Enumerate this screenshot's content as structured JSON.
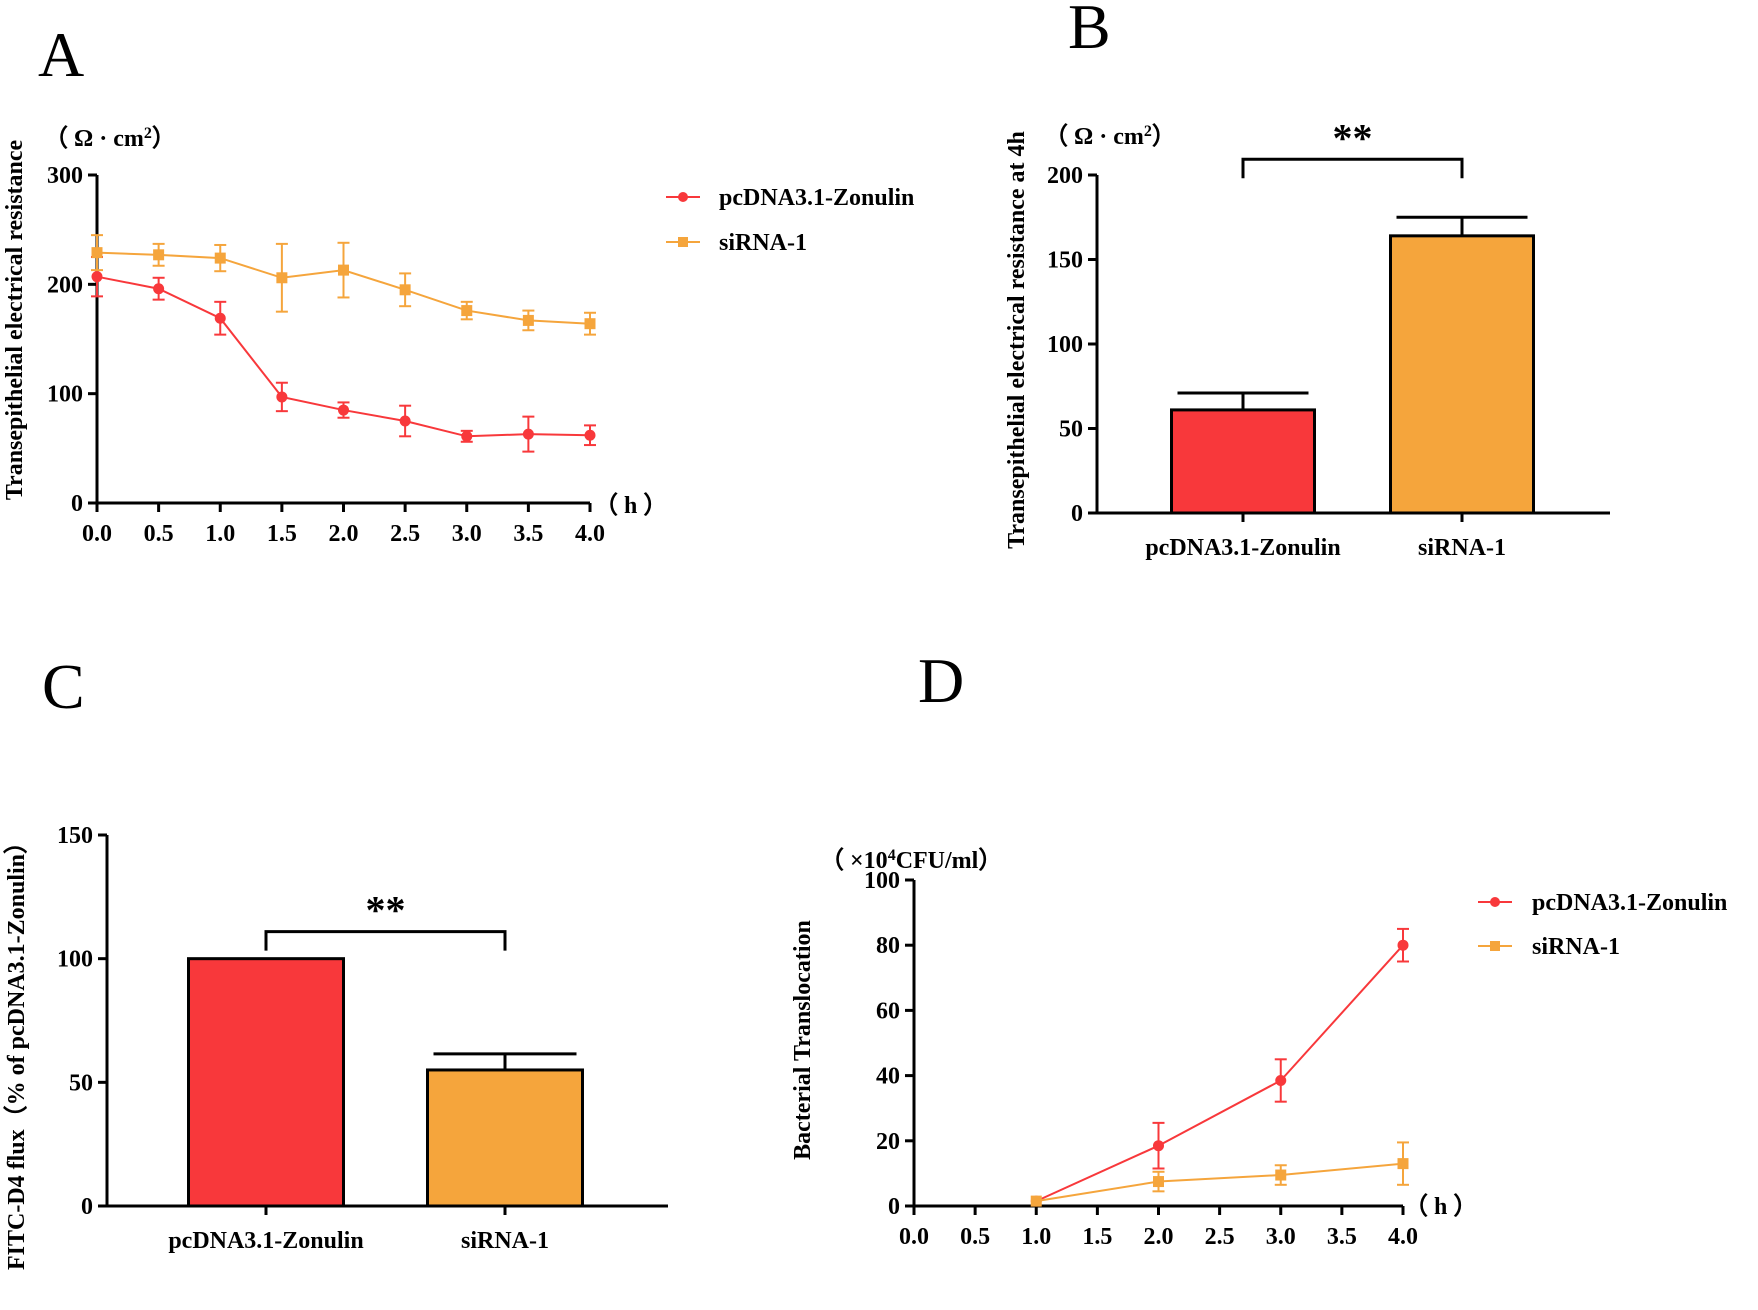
{
  "colors": {
    "red": "#f8383b",
    "orange": "#f5a53c",
    "axis": "#000000"
  },
  "chart_data": [
    {
      "panel": "A",
      "type": "line",
      "unit_label": "（ Ω · cm",
      "unit_sup": "2",
      "unit_close": "）",
      "x_unit_label": "（ h ）",
      "xlabel": "",
      "ylabel": "Transepithelial electrical resistance",
      "xlim": [
        0,
        4
      ],
      "ylim": [
        0,
        300
      ],
      "x_ticks": [
        0,
        0.5,
        1,
        1.5,
        2,
        2.5,
        3,
        3.5,
        4
      ],
      "x_tick_labels": [
        "0.0",
        "0.5",
        "1.0",
        "1.5",
        "2.0",
        "2.5",
        "3.0",
        "3.5",
        "4.0"
      ],
      "y_ticks": [
        0,
        100,
        200,
        300
      ],
      "y_tick_labels": [
        "0",
        "100",
        "200",
        "300"
      ],
      "legend": "top-right",
      "series": [
        {
          "name": "pcDNA3.1-Zonulin",
          "color": "red",
          "marker": "circle",
          "x": [
            0,
            0.5,
            1,
            1.5,
            2,
            2.5,
            3,
            3.5,
            4
          ],
          "y": [
            207,
            196,
            169,
            97,
            85,
            75,
            61,
            63,
            62
          ],
          "err": [
            18,
            10,
            15,
            13,
            7,
            14,
            5,
            16,
            9
          ]
        },
        {
          "name": "siRNA-1",
          "color": "orange",
          "marker": "square",
          "x": [
            0,
            0.5,
            1,
            1.5,
            2,
            2.5,
            3,
            3.5,
            4
          ],
          "y": [
            229,
            227,
            224,
            206,
            213,
            195,
            176,
            167,
            164
          ],
          "err": [
            16,
            10,
            12,
            31,
            25,
            15,
            8,
            9,
            10
          ]
        }
      ]
    },
    {
      "panel": "B",
      "type": "bar",
      "unit_label": "（ Ω · cm",
      "unit_sup": "2",
      "unit_close": "）",
      "xlabel": "",
      "ylabel": "Transepithelial electrical resistance at 4h",
      "ylim": [
        0,
        200
      ],
      "y_ticks": [
        0,
        50,
        100,
        150,
        200
      ],
      "y_tick_labels": [
        "0",
        "50",
        "100",
        "150",
        "200"
      ],
      "categories": [
        "pcDNA3.1-Zonulin",
        "siRNA-1"
      ],
      "values": [
        61,
        164
      ],
      "errors": [
        10,
        11
      ],
      "bar_colors": [
        "red",
        "orange"
      ],
      "significance": "**"
    },
    {
      "panel": "C",
      "type": "bar",
      "xlabel": "",
      "ylabel": "FITC-D4 flux（% of pcDNA3.1-Zonulin）",
      "ylim": [
        0,
        150
      ],
      "y_ticks": [
        0,
        50,
        100,
        150
      ],
      "y_tick_labels": [
        "0",
        "50",
        "100",
        "150"
      ],
      "categories": [
        "pcDNA3.1-Zonulin",
        "siRNA-1"
      ],
      "values": [
        100,
        55
      ],
      "errors": [
        0,
        6.5
      ],
      "bar_colors": [
        "red",
        "orange"
      ],
      "significance": "**"
    },
    {
      "panel": "D",
      "type": "line",
      "unit_label": "（ ×10",
      "unit_sup": "4",
      "unit_close": "CFU/ml）",
      "x_unit_label": "（ h ）",
      "xlabel": "",
      "ylabel": "Bacterial Translocation",
      "xlim": [
        0,
        4
      ],
      "ylim": [
        0,
        100
      ],
      "x_ticks": [
        0,
        0.5,
        1,
        1.5,
        2,
        2.5,
        3,
        3.5,
        4
      ],
      "x_tick_labels": [
        "0.0",
        "0.5",
        "1.0",
        "1.5",
        "2.0",
        "2.5",
        "3.0",
        "3.5",
        "4.0"
      ],
      "y_ticks": [
        0,
        20,
        40,
        60,
        80,
        100
      ],
      "y_tick_labels": [
        "0",
        "20",
        "40",
        "60",
        "80",
        "100"
      ],
      "legend": "top-right",
      "series": [
        {
          "name": "pcDNA3.1-Zonulin",
          "color": "red",
          "marker": "circle",
          "x": [
            1,
            2,
            3,
            4
          ],
          "y": [
            1.5,
            18.5,
            38.5,
            80
          ],
          "err": [
            0,
            7,
            6.5,
            5
          ]
        },
        {
          "name": "siRNA-1",
          "color": "orange",
          "marker": "square",
          "x": [
            1,
            2,
            3,
            4
          ],
          "y": [
            1.5,
            7.5,
            9.5,
            13
          ],
          "err": [
            0,
            3,
            3,
            6.5
          ]
        }
      ]
    }
  ]
}
